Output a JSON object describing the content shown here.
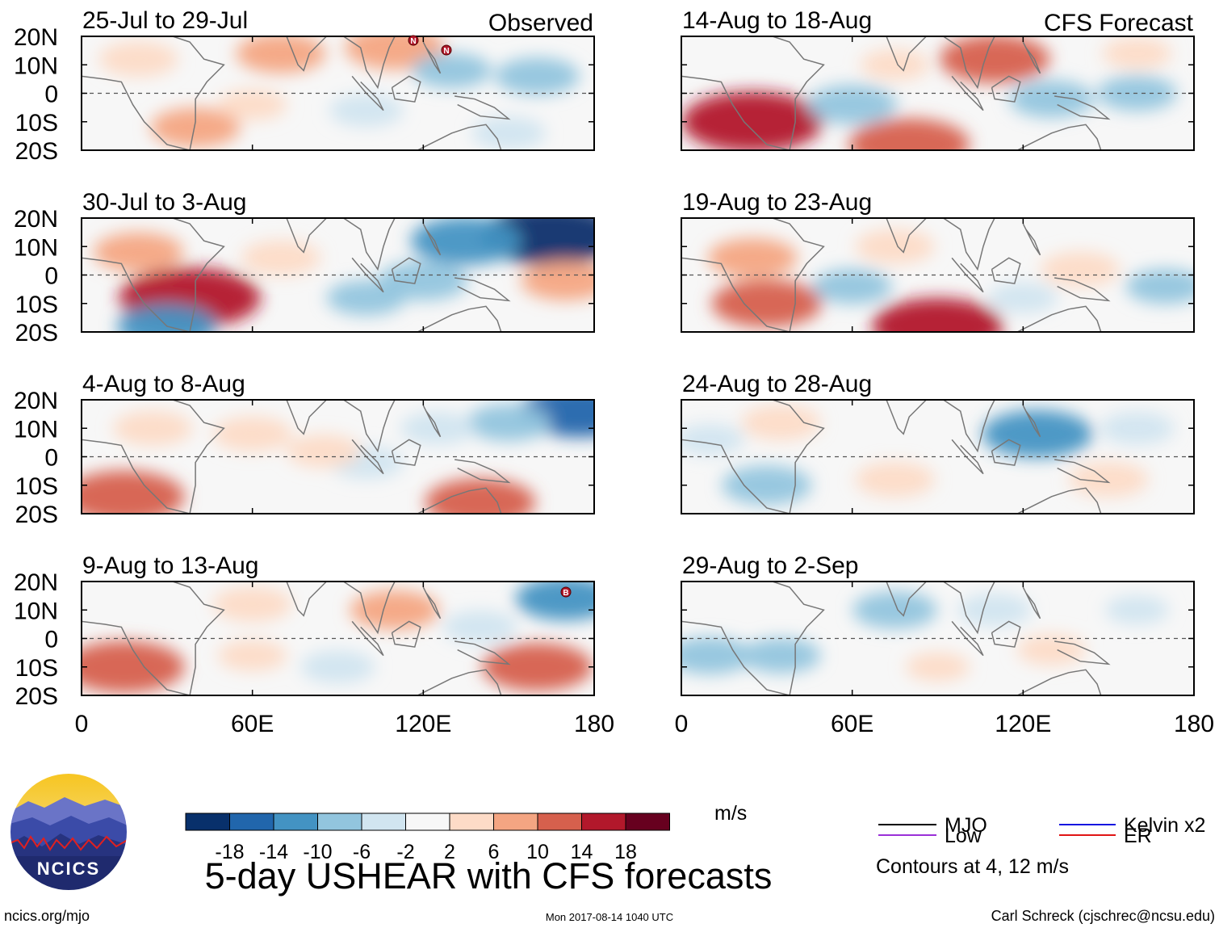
{
  "figure": {
    "title": "5-day USHEAR with CFS forecasts",
    "website": "ncics.org/mjo",
    "timestamp": "Mon 2017-08-14 1040 UTC",
    "credit": "Carl Schreck (cjschrec@ncsu.edu)",
    "logo_text": "NCICS"
  },
  "columns": [
    {
      "label": "Observed"
    },
    {
      "label": "CFS Forecast"
    }
  ],
  "panels": [
    {
      "title": "25-Jul to 29-Jul",
      "col": 0,
      "row": 0,
      "source": "Observed"
    },
    {
      "title": "30-Jul to 3-Aug",
      "col": 0,
      "row": 1,
      "source": "Observed"
    },
    {
      "title": "4-Aug to 8-Aug",
      "col": 0,
      "row": 2,
      "source": "Observed"
    },
    {
      "title": "9-Aug to 13-Aug",
      "col": 0,
      "row": 3,
      "source": "Observed"
    },
    {
      "title": "14-Aug to 18-Aug",
      "col": 1,
      "row": 0,
      "source": "CFS Forecast"
    },
    {
      "title": "19-Aug to 23-Aug",
      "col": 1,
      "row": 1,
      "source": "CFS Forecast"
    },
    {
      "title": "24-Aug to 28-Aug",
      "col": 1,
      "row": 2,
      "source": "CFS Forecast"
    },
    {
      "title": "29-Aug to 2-Sep",
      "col": 1,
      "row": 3,
      "source": "CFS Forecast"
    }
  ],
  "axes": {
    "lat_ticks": [
      "20N",
      "10N",
      "0",
      "10S",
      "20S"
    ],
    "lat_values": [
      20,
      10,
      0,
      -10,
      -20
    ],
    "lon_ticks": [
      "0",
      "60E",
      "120E",
      "180"
    ],
    "lon_values": [
      0,
      60,
      120,
      180
    ]
  },
  "colorbar": {
    "unit": "m/s",
    "levels": [
      "-18",
      "-14",
      "-10",
      "-6",
      "-2",
      "2",
      "6",
      "10",
      "14",
      "18"
    ],
    "colors": [
      "#08306b",
      "#2166ac",
      "#4393c3",
      "#92c5de",
      "#d1e5f0",
      "#f7f7f7",
      "#fddbc7",
      "#f4a582",
      "#d6604d",
      "#b2182b",
      "#67001f"
    ]
  },
  "contour_legend": {
    "items": [
      {
        "label": "MJO",
        "color": "#000000"
      },
      {
        "label": "Kelvin x2",
        "color": "#1515e0"
      },
      {
        "label": "Low",
        "color": "#9a30d8"
      },
      {
        "label": "ER",
        "color": "#e01515"
      }
    ],
    "note": "Contours at 4, 12 m/s"
  },
  "storm_markers": [
    {
      "panel": 0,
      "label": "N"
    },
    {
      "panel": 0,
      "label": "N"
    },
    {
      "panel": 3,
      "label": "B"
    }
  ],
  "chart_data": {
    "type": "heatmap",
    "variable": "USHEAR",
    "units": "m/s",
    "lon_range": [
      0,
      180
    ],
    "lat_range": [
      -20,
      20
    ],
    "panels": [
      {
        "title": "25-Jul to 29-Jul",
        "blobs": [
          {
            "lon": 40,
            "lat": -12,
            "v": 8
          },
          {
            "lon": 20,
            "lat": 12,
            "v": 6
          },
          {
            "lon": 70,
            "lat": 14,
            "v": 8
          },
          {
            "lon": 110,
            "lat": 16,
            "v": 10
          },
          {
            "lon": 130,
            "lat": 8,
            "v": -6
          },
          {
            "lon": 160,
            "lat": 6,
            "v": -7
          },
          {
            "lon": 100,
            "lat": -6,
            "v": -5
          },
          {
            "lon": 150,
            "lat": -14,
            "v": -5
          },
          {
            "lon": 60,
            "lat": -4,
            "v": 4
          }
        ]
      },
      {
        "title": "30-Jul to 3-Aug",
        "blobs": [
          {
            "lon": 38,
            "lat": -8,
            "v": 18
          },
          {
            "lon": 20,
            "lat": 8,
            "v": 8
          },
          {
            "lon": 70,
            "lat": 6,
            "v": 6
          },
          {
            "lon": 165,
            "lat": 14,
            "v": -18
          },
          {
            "lon": 135,
            "lat": 12,
            "v": -12
          },
          {
            "lon": 120,
            "lat": -2,
            "v": -8
          },
          {
            "lon": 30,
            "lat": -18,
            "v": -10
          },
          {
            "lon": 100,
            "lat": -8,
            "v": -6
          },
          {
            "lon": 170,
            "lat": -2,
            "v": 8
          }
        ]
      },
      {
        "title": "4-Aug to 8-Aug",
        "blobs": [
          {
            "lon": 15,
            "lat": -14,
            "v": 14
          },
          {
            "lon": 25,
            "lat": 10,
            "v": 6
          },
          {
            "lon": 60,
            "lat": 8,
            "v": 6
          },
          {
            "lon": 140,
            "lat": -16,
            "v": 12
          },
          {
            "lon": 175,
            "lat": 16,
            "v": -14
          },
          {
            "lon": 150,
            "lat": 12,
            "v": -7
          },
          {
            "lon": 100,
            "lat": -2,
            "v": -5
          },
          {
            "lon": 125,
            "lat": 10,
            "v": -5
          },
          {
            "lon": 85,
            "lat": 2,
            "v": 5
          }
        ]
      },
      {
        "title": "9-Aug to 13-Aug",
        "blobs": [
          {
            "lon": 15,
            "lat": -10,
            "v": 14
          },
          {
            "lon": 60,
            "lat": 12,
            "v": 6
          },
          {
            "lon": 110,
            "lat": 10,
            "v": 8
          },
          {
            "lon": 160,
            "lat": -10,
            "v": 12
          },
          {
            "lon": 170,
            "lat": 14,
            "v": -10
          },
          {
            "lon": 90,
            "lat": -10,
            "v": -5
          },
          {
            "lon": 140,
            "lat": 4,
            "v": -5
          },
          {
            "lon": 60,
            "lat": -6,
            "v": 4
          }
        ]
      },
      {
        "title": "14-Aug to 18-Aug",
        "blobs": [
          {
            "lon": 25,
            "lat": -10,
            "v": 18
          },
          {
            "lon": 110,
            "lat": 12,
            "v": 12
          },
          {
            "lon": 80,
            "lat": -18,
            "v": 14
          },
          {
            "lon": 60,
            "lat": -4,
            "v": -8
          },
          {
            "lon": 130,
            "lat": -2,
            "v": -7
          },
          {
            "lon": 160,
            "lat": 0,
            "v": -6
          },
          {
            "lon": 75,
            "lat": 10,
            "v": 4
          },
          {
            "lon": 160,
            "lat": 14,
            "v": 4
          }
        ]
      },
      {
        "title": "19-Aug to 23-Aug",
        "blobs": [
          {
            "lon": 30,
            "lat": -10,
            "v": 12
          },
          {
            "lon": 90,
            "lat": -18,
            "v": 16
          },
          {
            "lon": 25,
            "lat": 6,
            "v": 8
          },
          {
            "lon": 75,
            "lat": 10,
            "v": 6
          },
          {
            "lon": 140,
            "lat": 2,
            "v": 6
          },
          {
            "lon": 60,
            "lat": -4,
            "v": -6
          },
          {
            "lon": 170,
            "lat": -4,
            "v": -6
          },
          {
            "lon": 120,
            "lat": -8,
            "v": -4
          }
        ]
      },
      {
        "title": "24-Aug to 28-Aug",
        "blobs": [
          {
            "lon": 125,
            "lat": 8,
            "v": -12
          },
          {
            "lon": 30,
            "lat": -10,
            "v": -8
          },
          {
            "lon": 10,
            "lat": 6,
            "v": -4
          },
          {
            "lon": 75,
            "lat": -8,
            "v": 6
          },
          {
            "lon": 35,
            "lat": 12,
            "v": 6
          },
          {
            "lon": 150,
            "lat": -8,
            "v": 6
          },
          {
            "lon": 160,
            "lat": 10,
            "v": -5
          }
        ]
      },
      {
        "title": "29-Aug to 2-Sep",
        "blobs": [
          {
            "lon": 10,
            "lat": -6,
            "v": -7
          },
          {
            "lon": 35,
            "lat": -6,
            "v": -6
          },
          {
            "lon": 75,
            "lat": 10,
            "v": -7
          },
          {
            "lon": 110,
            "lat": 10,
            "v": -5
          },
          {
            "lon": 130,
            "lat": -4,
            "v": 4
          },
          {
            "lon": 90,
            "lat": -10,
            "v": 3
          },
          {
            "lon": 160,
            "lat": 10,
            "v": -3
          }
        ]
      }
    ]
  }
}
